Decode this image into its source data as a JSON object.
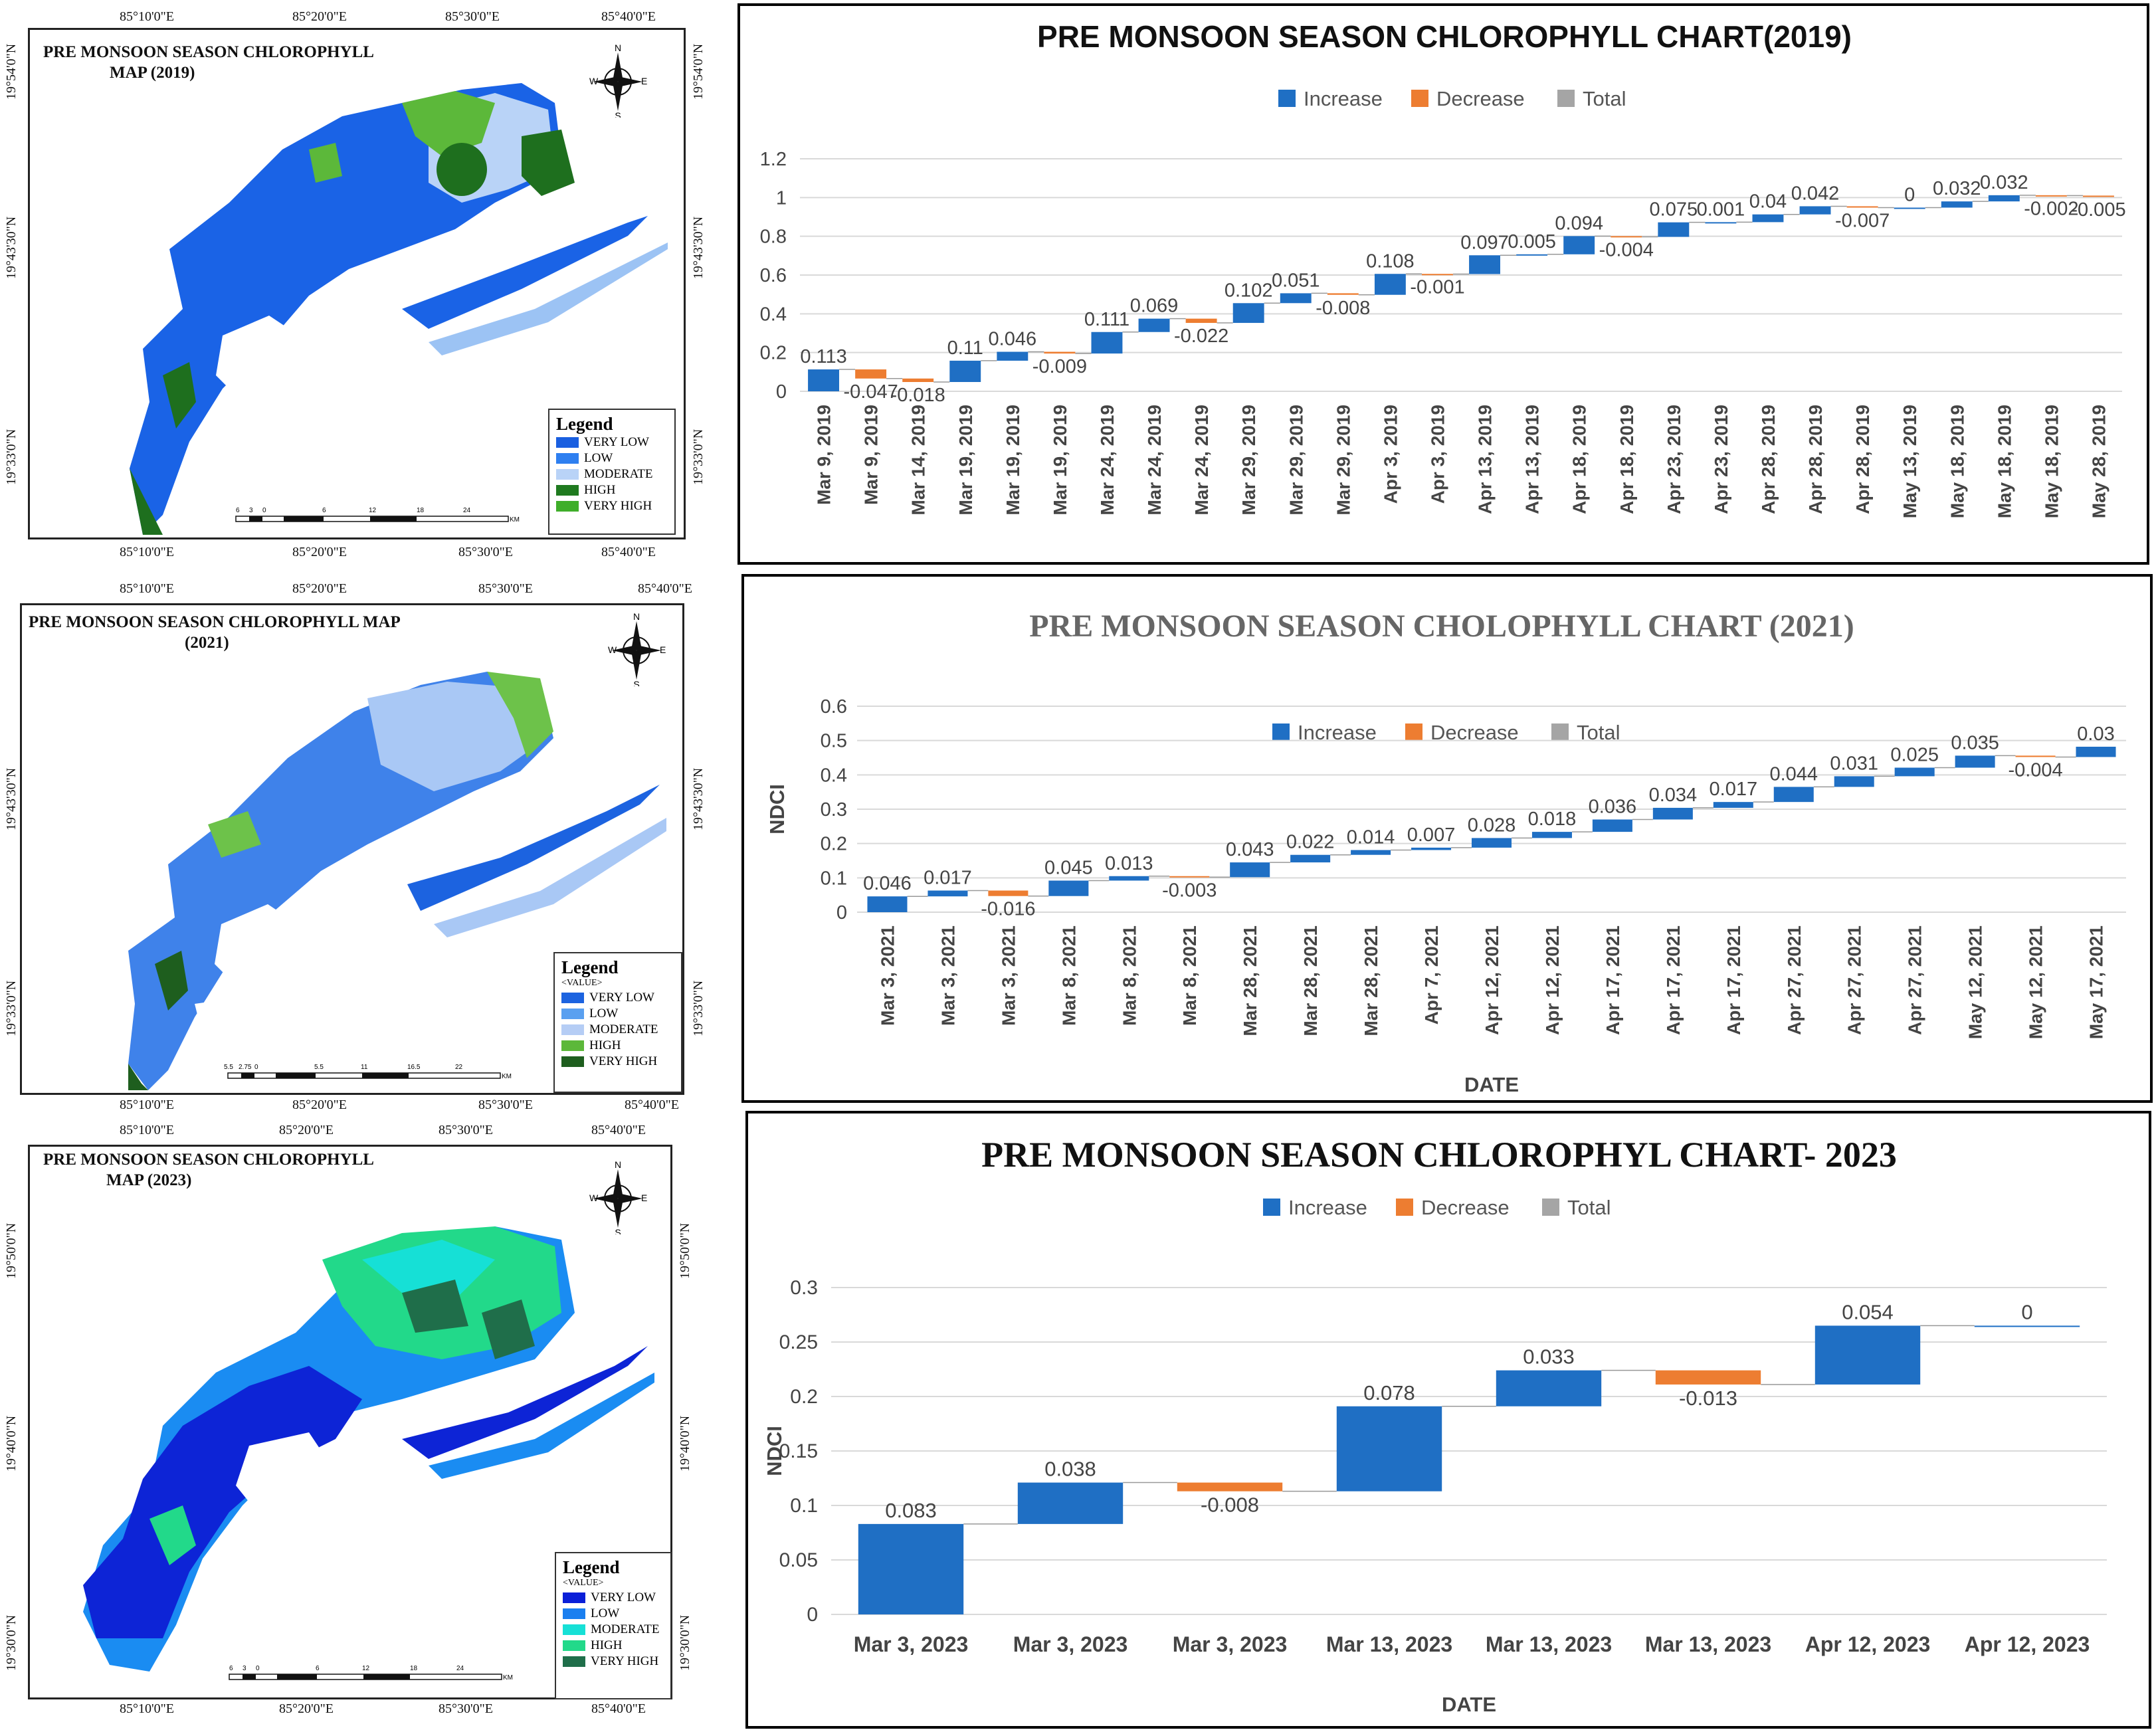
{
  "maps": [
    {
      "title_line1": "PRE MONSOON SEASON CHLOROPHYLL",
      "title_line2": "MAP  (2019)",
      "top_coords": [
        "85°10'0\"E",
        "85°20'0\"E",
        "85°30'0\"E",
        "85°40'0\"E"
      ],
      "bottom_coords": [
        "85°10'0\"E",
        "85°20'0\"E",
        "85°30'0\"E",
        "85°40'0\"E"
      ],
      "left_coords": [
        "19°54'0\"N",
        "19°43'30\"N",
        "19°33'0\"N"
      ],
      "right_coords": [
        "19°54'0\"N",
        "19°43'30\"N",
        "19°33'0\"N"
      ],
      "compass": {
        "n": "N",
        "s": "S",
        "e": "E",
        "w": "W"
      },
      "legend_title": "Legend",
      "legend_value_label": "",
      "legend": [
        {
          "label": "VERY LOW",
          "color": "#1a5fe0"
        },
        {
          "label": "LOW",
          "color": "#2e7ff0"
        },
        {
          "label": "MODERATE",
          "color": "#b9d3f7"
        },
        {
          "label": "HIGH",
          "color": "#1f7a1f"
        },
        {
          "label": "VERY HIGH",
          "color": "#3fae2a"
        }
      ],
      "scale_ticks": [
        "6",
        "3",
        "0",
        "6",
        "12",
        "18",
        "24"
      ],
      "scale_unit": "KM",
      "palette": {
        "water_main": "#1a63e6",
        "water_light": "#9cc3f4",
        "veg_dark": "#1e6f1e",
        "veg_light": "#5cb83a"
      }
    },
    {
      "title_line1": "PRE MONSOON SEASON CHLOROPHYLL  MAP",
      "title_line2": "(2021)",
      "top_coords": [
        "85°10'0\"E",
        "85°20'0\"E",
        "85°30'0\"E",
        "85°40'0\"E"
      ],
      "bottom_coords": [
        "85°10'0\"E",
        "85°20'0\"E",
        "85°30'0\"E",
        "85°40'0\"E"
      ],
      "left_coords": [
        "19°43'30\"N",
        "19°33'0\"N"
      ],
      "right_coords": [
        "19°43'30\"N",
        "19°33'0\"N"
      ],
      "compass": {
        "n": "N",
        "s": "S",
        "e": "E",
        "w": "W"
      },
      "legend_title": "Legend",
      "legend_value_label": "<VALUE>",
      "legend": [
        {
          "label": "VERY LOW",
          "color": "#1c63e0"
        },
        {
          "label": "LOW",
          "color": "#5aa0f0"
        },
        {
          "label": "MODERATE",
          "color": "#b5cdf5"
        },
        {
          "label": "HIGH",
          "color": "#5cb83a"
        },
        {
          "label": "VERY HIGH",
          "color": "#1e5e1e"
        }
      ],
      "scale_ticks": [
        "5.5",
        "2.75",
        "0",
        "5.5",
        "11",
        "16.5",
        "22"
      ],
      "scale_unit": "KM",
      "palette": {
        "water_main": "#3f82ea",
        "water_light": "#a9c8f5",
        "veg_dark": "#1e6f1e",
        "veg_light": "#6dc24a"
      }
    },
    {
      "title_line1": "PRE MONSOON SEASON CHLOROPHYLL",
      "title_line2": "MAP (2023)",
      "top_coords": [
        "85°10'0\"E",
        "85°20'0\"E",
        "85°30'0\"E",
        "85°40'0\"E"
      ],
      "bottom_coords": [
        "85°10'0\"E",
        "85°20'0\"E",
        "85°30'0\"E",
        "85°40'0\"E"
      ],
      "left_coords": [
        "19°50'0\"N",
        "19°40'0\"N",
        "19°30'0\"N"
      ],
      "right_coords": [
        "19°50'0\"N",
        "19°40'0\"N",
        "19°30'0\"N"
      ],
      "compass": {
        "n": "N",
        "s": "S",
        "e": "E",
        "w": "W"
      },
      "legend_title": "Legend",
      "legend_value_label": "<VALUE>",
      "legend": [
        {
          "label": "VERY LOW",
          "color": "#0a1fd8"
        },
        {
          "label": "LOW",
          "color": "#1a7ff0"
        },
        {
          "label": "MODERATE",
          "color": "#16e0d6"
        },
        {
          "label": "HIGH",
          "color": "#22d98a"
        },
        {
          "label": "VERY HIGH",
          "color": "#1f6e4a"
        }
      ],
      "scale_ticks": [
        "6",
        "3",
        "0",
        "6",
        "12",
        "18",
        "24"
      ],
      "scale_unit": "KM",
      "palette": {
        "water_main": "#0d24d6",
        "water_light": "#1a8cf2",
        "veg_dark": "#1f7050",
        "veg_light": "#2ee0a0"
      }
    }
  ],
  "chart_data": [
    {
      "type": "waterfall",
      "title": "PRE MONSOON SEASON CHLOROPHYLL CHART(2019)",
      "legend": [
        "Increase",
        "Decrease",
        "Total"
      ],
      "colors": {
        "increase": "#1f6fc4",
        "decrease": "#ed7d31",
        "total": "#a5a5a5"
      },
      "xlabel": "",
      "ylabel": "",
      "ylim": [
        0,
        1.2
      ],
      "yticks": [
        "0",
        "0.2",
        "0.4",
        "0.6",
        "0.8",
        "1",
        "1.2"
      ],
      "categories": [
        "Mar 9, 2019",
        "Mar 9, 2019",
        "Mar 14, 2019",
        "Mar 19, 2019",
        "Mar 19, 2019",
        "Mar 19, 2019",
        "Mar 24, 2019",
        "Mar 24, 2019",
        "Mar 24, 2019",
        "Mar 29, 2019",
        "Mar 29, 2019",
        "Mar 29, 2019",
        "Apr 3, 2019",
        "Apr 3, 2019",
        "Apr 13, 2019",
        "Apr 13, 2019",
        "Apr 18, 2019",
        "Apr 18, 2019",
        "Apr 23, 2019",
        "Apr 23, 2019",
        "Apr 28, 2019",
        "Apr 28, 2019",
        "Apr 28, 2019",
        "May 13, 2019",
        "May 18, 2019",
        "May 18, 2019",
        "May 18, 2019",
        "May 28, 2019"
      ],
      "values": [
        0.113,
        -0.047,
        -0.018,
        0.11,
        0.046,
        -0.009,
        0.111,
        0.069,
        -0.022,
        0.102,
        0.051,
        -0.008,
        0.108,
        -0.001,
        0.097,
        0.005,
        0.094,
        -0.004,
        0.075,
        0.001,
        0.04,
        0.042,
        -0.007,
        0,
        0.032,
        0.032,
        -0.002,
        -0.005
      ],
      "labels": [
        "0.113",
        "-0.047",
        "-0.018",
        "0.11",
        "0.046",
        "-0.009",
        "0.111",
        "0.069",
        "-0.022",
        "0.102",
        "0.051",
        "-0.008",
        "0.108",
        "-0.001",
        "0.097",
        "0.005",
        "0.094",
        "-0.004",
        "0.075",
        "0.001",
        "0.04",
        "0.042",
        "-0.007",
        "0",
        "0.032",
        "0.032",
        "-0.002",
        "-0.005"
      ]
    },
    {
      "type": "waterfall",
      "title": "PRE MONSOON SEASON CHOLOPHYLL CHART (2021)",
      "legend": [
        "Increase",
        "Decrease",
        "Total"
      ],
      "colors": {
        "increase": "#1f6fc4",
        "decrease": "#ed7d31",
        "total": "#a5a5a5"
      },
      "xlabel": "DATE",
      "ylabel": "NDCI",
      "ylim": [
        0,
        0.6
      ],
      "yticks": [
        "0",
        "0.1",
        "0.2",
        "0.3",
        "0.4",
        "0.5",
        "0.6"
      ],
      "categories": [
        "Mar 3, 2021",
        "Mar 3, 2021",
        "Mar 3, 2021",
        "Mar 8, 2021",
        "Mar 8, 2021",
        "Mar 8, 2021",
        "Mar 28, 2021",
        "Mar 28, 2021",
        "Mar 28, 2021",
        "Apr 7, 2021",
        "Apr 12, 2021",
        "Apr 12, 2021",
        "Apr 17, 2021",
        "Apr 17, 2021",
        "Apr 17, 2021",
        "Apr 27, 2021",
        "Apr 27, 2021",
        "Apr 27, 2021",
        "May 12, 2021",
        "May 12, 2021",
        "May 17, 2021"
      ],
      "values": [
        0.046,
        0.017,
        -0.016,
        0.045,
        0.013,
        -0.003,
        0.043,
        0.022,
        0.014,
        0.007,
        0.028,
        0.018,
        0.036,
        0.034,
        0.017,
        0.044,
        0.031,
        0.025,
        0.035,
        -0.004,
        0.03
      ],
      "labels": [
        "0.046",
        "0.017",
        "-0.016",
        "0.045",
        "0.013",
        "-0.003",
        "0.043",
        "0.022",
        "0.014",
        "0.007",
        "0.028",
        "0.018",
        "0.036",
        "0.034",
        "0.017",
        "0.044",
        "0.031",
        "0.025",
        "0.035",
        "-0.004",
        "0.03"
      ]
    },
    {
      "type": "waterfall",
      "title": "PRE MONSOON SEASON CHLOROPHYL CHART- 2023",
      "legend": [
        "Increase",
        "Decrease",
        "Total"
      ],
      "colors": {
        "increase": "#1f6fc4",
        "decrease": "#ed7d31",
        "total": "#a5a5a5"
      },
      "xlabel": "DATE",
      "ylabel": "NDCI",
      "ylim": [
        0,
        0.3
      ],
      "yticks": [
        "0",
        "0.05",
        "0.1",
        "0.15",
        "0.2",
        "0.25",
        "0.3"
      ],
      "categories": [
        "Mar 3, 2023",
        "Mar 3, 2023",
        "Mar 3, 2023",
        "Mar 13, 2023",
        "Mar 13, 2023",
        "Mar 13, 2023",
        "Apr 12, 2023",
        "Apr 12, 2023"
      ],
      "values": [
        0.083,
        0.038,
        -0.008,
        0.078,
        0.033,
        -0.013,
        0.054,
        0
      ],
      "labels": [
        "0.083",
        "0.038",
        "-0.008",
        "0.078",
        "0.033",
        "-0.013",
        "0.054",
        "0"
      ]
    }
  ]
}
